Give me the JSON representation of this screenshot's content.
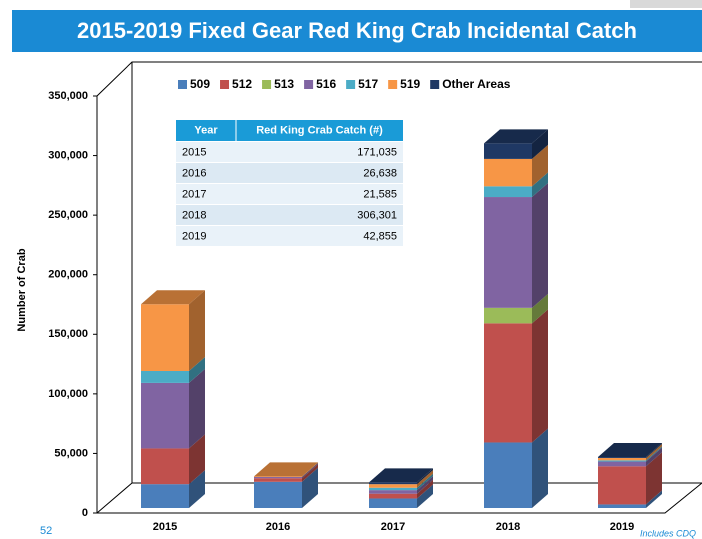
{
  "header": {
    "title": "2015-2019 Fixed Gear Red King Crab Incidental Catch"
  },
  "chart_data": {
    "type": "bar3d_stacked",
    "y_label": "Number of Crab",
    "categories": [
      "2015",
      "2016",
      "2017",
      "2018",
      "2019"
    ],
    "series": [
      {
        "name": "509",
        "color": "#4a7ebb",
        "values": [
          20000,
          22000,
          8000,
          55000,
          3000
        ]
      },
      {
        "name": "512",
        "color": "#c0504d",
        "values": [
          30000,
          3000,
          4000,
          100000,
          32000
        ]
      },
      {
        "name": "513",
        "color": "#9bbb59",
        "values": [
          0,
          0,
          0,
          13000,
          0
        ]
      },
      {
        "name": "516",
        "color": "#8064a2",
        "values": [
          55000,
          1000,
          3000,
          93000,
          4000
        ]
      },
      {
        "name": "517",
        "color": "#4bacc6",
        "values": [
          10000,
          0,
          2000,
          9000,
          1000
        ]
      },
      {
        "name": "519",
        "color": "#f79646",
        "values": [
          56000,
          500,
          3000,
          23000,
          2000
        ]
      },
      {
        "name": "Other Areas",
        "color": "#1f3864",
        "values": [
          0,
          0,
          1500,
          13000,
          800
        ]
      }
    ],
    "ylim": [
      0,
      350000
    ],
    "yticks": [
      0,
      {
        "value": 50000,
        "label": "50,000"
      },
      {
        "value": 100000,
        "label": "100,000"
      },
      {
        "value": 150000,
        "label": "150,000"
      },
      {
        "value": 200000,
        "label": "200,000"
      },
      {
        "value": 250000,
        "label": "250,000"
      },
      {
        "value": 300000,
        "label": "300,000"
      },
      {
        "value": 350000,
        "label": "350,000"
      }
    ],
    "legend": "top"
  },
  "table": {
    "columns": [
      "Year",
      "Red King Crab Catch (#)"
    ],
    "rows": [
      [
        "2015",
        "171,035"
      ],
      [
        "2016",
        "26,638"
      ],
      [
        "2017",
        "21,585"
      ],
      [
        "2018",
        "306,301"
      ],
      [
        "2019",
        "42,855"
      ]
    ]
  },
  "footer": {
    "page": "52",
    "note": "Includes CDQ"
  }
}
